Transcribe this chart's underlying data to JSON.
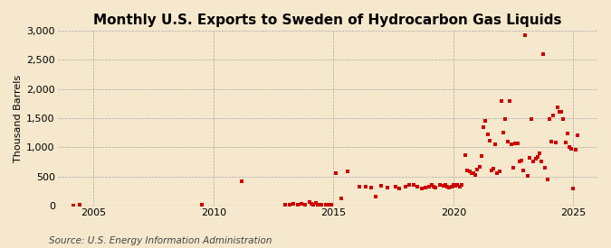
{
  "title": "Monthly U.S. Exports to Sweden of Hydrocarbon Gas Liquids",
  "ylabel": "Thousand Barrels",
  "source": "Source: U.S. Energy Information Administration",
  "background_color": "#f5e8cc",
  "plot_bg_color": "#f5e8cc",
  "scatter_color": "#cc0000",
  "marker": "s",
  "marker_size": 5,
  "xlim": [
    2003.5,
    2026.0
  ],
  "ylim": [
    0,
    3000
  ],
  "yticks": [
    0,
    500,
    1000,
    1500,
    2000,
    2500,
    3000
  ],
  "xticks": [
    2005,
    2010,
    2015,
    2020,
    2025
  ],
  "data_x": [
    2004.17,
    2004.42,
    2009.5,
    2011.17,
    2013.0,
    2013.17,
    2013.33,
    2013.5,
    2013.67,
    2013.83,
    2014.0,
    2014.08,
    2014.17,
    2014.25,
    2014.33,
    2014.42,
    2014.5,
    2014.67,
    2014.75,
    2014.83,
    2014.92,
    2015.08,
    2015.33,
    2015.58,
    2016.08,
    2016.33,
    2016.58,
    2016.75,
    2017.0,
    2017.25,
    2017.58,
    2017.75,
    2018.0,
    2018.17,
    2018.33,
    2018.5,
    2018.67,
    2018.83,
    2019.0,
    2019.08,
    2019.17,
    2019.25,
    2019.42,
    2019.58,
    2019.67,
    2019.75,
    2019.83,
    2019.92,
    2020.0,
    2020.08,
    2020.17,
    2020.25,
    2020.33,
    2020.5,
    2020.58,
    2020.67,
    2020.75,
    2020.83,
    2020.92,
    2021.0,
    2021.08,
    2021.17,
    2021.25,
    2021.33,
    2021.42,
    2021.5,
    2021.58,
    2021.67,
    2021.75,
    2021.83,
    2021.92,
    2022.0,
    2022.08,
    2022.17,
    2022.25,
    2022.33,
    2022.42,
    2022.5,
    2022.58,
    2022.67,
    2022.75,
    2022.83,
    2022.92,
    2023.0,
    2023.08,
    2023.17,
    2023.25,
    2023.33,
    2023.42,
    2023.5,
    2023.58,
    2023.67,
    2023.75,
    2023.83,
    2023.92,
    2024.0,
    2024.08,
    2024.17,
    2024.25,
    2024.33,
    2024.42,
    2024.5,
    2024.58,
    2024.67,
    2024.75,
    2024.83,
    2024.92,
    2025.0,
    2025.08,
    2025.17
  ],
  "data_y": [
    5,
    8,
    20,
    420,
    10,
    15,
    25,
    20,
    30,
    10,
    60,
    30,
    20,
    40,
    15,
    20,
    10,
    15,
    20,
    5,
    10,
    550,
    130,
    580,
    320,
    330,
    310,
    150,
    340,
    310,
    330,
    300,
    320,
    350,
    360,
    330,
    300,
    310,
    330,
    350,
    320,
    310,
    360,
    340,
    360,
    330,
    310,
    330,
    350,
    340,
    350,
    330,
    360,
    870,
    600,
    580,
    560,
    550,
    520,
    620,
    660,
    850,
    1340,
    1450,
    1220,
    1120,
    600,
    640,
    1050,
    550,
    580,
    1800,
    1250,
    1480,
    1100,
    1800,
    1050,
    650,
    1060,
    1070,
    750,
    770,
    600,
    2920,
    510,
    820,
    1490,
    760,
    800,
    830,
    900,
    750,
    2590,
    650,
    450,
    1480,
    1090,
    1550,
    1080,
    1680,
    1600,
    1600,
    1480,
    1080,
    1230,
    1000,
    980,
    300,
    960,
    1200
  ],
  "title_fontsize": 11,
  "tick_fontsize": 8,
  "ylabel_fontsize": 8,
  "source_fontsize": 7.5
}
